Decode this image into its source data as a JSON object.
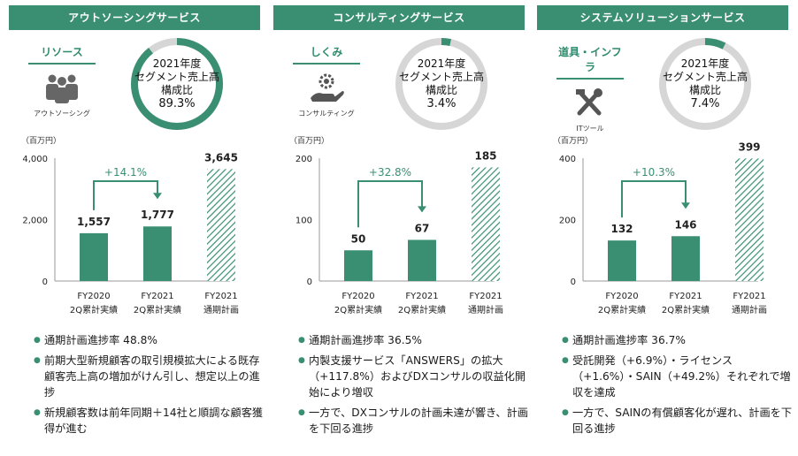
{
  "unit_label": "（百万円）",
  "colors": {
    "accent": "#3a8f73",
    "ring_bg": "#d6d6d6"
  },
  "panels": [
    {
      "header": "アウトソーシングサービス",
      "category": "リソース",
      "category_sub": "アウトソーシング",
      "icon": "people-icon",
      "ring_lines": [
        "2021年度",
        "セグメント売上高",
        "構成比"
      ],
      "ring_pct_label": "89.3%",
      "ring_fraction": 0.893,
      "bullets": [
        "通期計画進捗率 48.8%",
        "前期大型新規顧客の取引規模拡大による既存顧客売上高の増加がけん引し、想定以上の進捗",
        "新規顧客数は前年同期＋14社と順調な顧客獲得が進む"
      ]
    },
    {
      "header": "コンサルティングサービス",
      "category": "しくみ",
      "category_sub": "コンサルティング",
      "icon": "gear-hand-icon",
      "ring_lines": [
        "2021年度",
        "セグメント売上高",
        "構成比"
      ],
      "ring_pct_label": "3.4%",
      "ring_fraction": 0.034,
      "bullets": [
        "通期計画進捗率 36.5%",
        "内製支援サービス「ANSWERS」の拡大（+117.8%）およびDXコンサルの収益化開始により増収",
        "一方で、DXコンサルの計画未達が響き、計画を下回る進捗"
      ]
    },
    {
      "header": "システムソリューションサービス",
      "category": "道具・インフラ",
      "category_sub": "ITツール",
      "icon": "tools-icon",
      "ring_lines": [
        "2021年度",
        "セグメント売上高",
        "構成比"
      ],
      "ring_pct_label": "7.4%",
      "ring_fraction": 0.074,
      "bullets": [
        "通期計画進捗率 36.7%",
        "受託開発（+6.9%）・ライセンス（+1.6%）・SAIN（+49.2%）それぞれで増収を達成",
        "一方で、SAINの有償顧客化が遅れ、計画を下回る進捗"
      ]
    }
  ],
  "chart_data": [
    {
      "type": "bar",
      "categories": [
        "FY2020\n2Q累計実績",
        "FY2021\n2Q累計実績",
        "FY2021\n通期計画"
      ],
      "values": [
        1557,
        1777,
        3645
      ],
      "value_labels": [
        "1,557",
        "1,777",
        "3,645"
      ],
      "yticks": [
        0,
        2000,
        4000
      ],
      "ytick_labels": [
        "0",
        "2,000",
        "4,000"
      ],
      "ylim": [
        0,
        4000
      ],
      "growth_label": "+14.1%",
      "hatched_last": true
    },
    {
      "type": "bar",
      "categories": [
        "FY2020\n2Q累計実績",
        "FY2021\n2Q累計実績",
        "FY2021\n通期計画"
      ],
      "values": [
        50,
        67,
        185
      ],
      "value_labels": [
        "50",
        "67",
        "185"
      ],
      "yticks": [
        0,
        100,
        200
      ],
      "ytick_labels": [
        "0",
        "100",
        "200"
      ],
      "ylim": [
        0,
        200
      ],
      "growth_label": "+32.8%",
      "hatched_last": true
    },
    {
      "type": "bar",
      "categories": [
        "FY2020\n2Q累計実績",
        "FY2021\n2Q累計実績",
        "FY2021\n通期計画"
      ],
      "values": [
        132,
        146,
        399
      ],
      "value_labels": [
        "132",
        "146",
        "399"
      ],
      "yticks": [
        0,
        200,
        400
      ],
      "ytick_labels": [
        "0",
        "200",
        "400"
      ],
      "ylim": [
        0,
        400
      ],
      "growth_label": "+10.3%",
      "hatched_last": true
    }
  ]
}
